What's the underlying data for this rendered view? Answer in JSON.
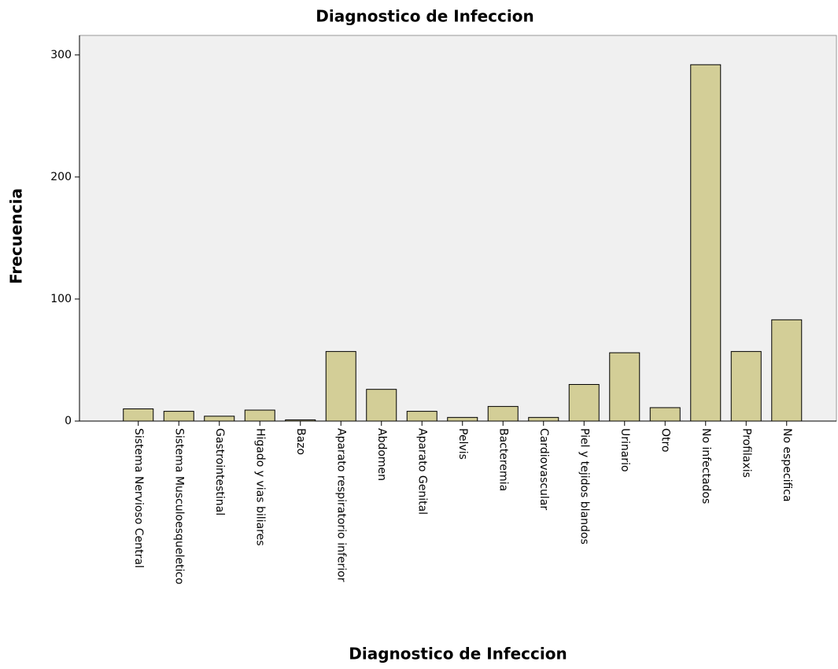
{
  "chart_data": {
    "type": "bar",
    "title": "Diagnostico de Infeccion",
    "x_label": "Diagnostico de Infeccion",
    "y_label": "Frecuencia",
    "categories": [
      "Sistema Nervioso Central",
      "Sistema Musculoesqueletico",
      "Gastrointestinal",
      "Higado y vias biliares",
      "Bazo",
      "Aparato respiratorio inferior",
      "Abdomen",
      "Aparato Genital",
      "Pelvis",
      "Bacteremia",
      "Cardiovascular",
      "Piel y tejidos blandos",
      "Urinario",
      "Otro",
      "No infectados",
      "Profilaxis",
      "No especifica"
    ],
    "values": [
      10,
      8,
      4,
      9,
      1,
      57,
      26,
      8,
      3,
      12,
      3,
      30,
      56,
      11,
      292,
      57,
      83
    ],
    "color": "#d3ce97",
    "ylim": [
      0,
      316
    ],
    "yticks": [
      0,
      100,
      200,
      300
    ],
    "grid": false
  }
}
